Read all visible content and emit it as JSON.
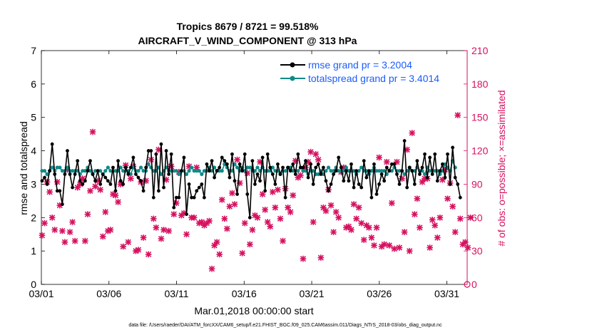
{
  "chart_data": {
    "type": "line",
    "title_line1": "Tropics 8679 / 8721 = 99.518%",
    "title_line2": "AIRCRAFT_V_WIND_COMPONENT @ 313 hPa",
    "xlabel": "Mar.01,2018 00:00:00 start",
    "ylabel_left": "rmse and totalspread",
    "ylabel_right": "# of obs: o=possible; ×=assimilated",
    "footer": "data file: /Users/raeder/DAI/ATM_forcXX/CAM6_setup/f.e21.FHIST_BGC.f09_025.CAM6assim.011/Diags_NTrS_2018-03/obs_diag_output.nc",
    "xlim": [
      0,
      31.5
    ],
    "ylim_left": [
      0,
      7
    ],
    "ylim_right": [
      0,
      210
    ],
    "x_ticks": [
      0,
      5,
      10,
      15,
      20,
      25,
      30
    ],
    "x_tick_labels": [
      "03/01",
      "03/06",
      "03/11",
      "03/16",
      "03/21",
      "03/26",
      "03/31"
    ],
    "y_left_ticks": [
      "0",
      "1",
      "2",
      "3",
      "4",
      "5",
      "6",
      "7"
    ],
    "y_right_ticks": [
      "0",
      "30",
      "60",
      "90",
      "120",
      "150",
      "180",
      "210"
    ],
    "legend": [
      {
        "label": "rmse grand pr = 3.2004",
        "color": "#000000"
      },
      {
        "label": "totalspread grand pr = 3.4014",
        "color": "#0f8a87"
      }
    ],
    "colors": {
      "rmse": "#000000",
      "spread": "#0f8a87",
      "obs": "#d6105f"
    },
    "series": [
      {
        "name": "rmse",
        "values": [
          3.1,
          3.2,
          3.0,
          3.4,
          4.2,
          3.3,
          2.8,
          2.8,
          2.4,
          3.3,
          4.0,
          3.3,
          2.9,
          3.3,
          3.7,
          3.1,
          3.0,
          3.1,
          3.4,
          3.7,
          3.3,
          3.1,
          3.4,
          3.0,
          3.3,
          3.2,
          3.1,
          3.0,
          3.5,
          2.8,
          3.7,
          3.1,
          3.0,
          3.5,
          3.3,
          3.5,
          3.8,
          3.3,
          3.2,
          3.1,
          2.8,
          3.5,
          4.0,
          4.0,
          2.6,
          3.9,
          2.8,
          4.2,
          2.9,
          4.0,
          3.3,
          3.9,
          2.3,
          2.6,
          2.6,
          3.4,
          3.8,
          2.1,
          3.0,
          2.6,
          2.6,
          2.8,
          2.9,
          3.0,
          2.6,
          3.6,
          3.4,
          3.7,
          3.2,
          3.4,
          3.5,
          3.8,
          3.7,
          3.6,
          3.2,
          3.9,
          3.1,
          2.7,
          3.6,
          3.4,
          3.9,
          2.7,
          2.0,
          3.7,
          3.0,
          3.3,
          3.1,
          3.8,
          2.8,
          3.9,
          3.5,
          3.3,
          3.0,
          3.6,
          3.3,
          3.5,
          2.6,
          3.5,
          3.4,
          3.6,
          3.3,
          3.9,
          3.5,
          3.5,
          3.7,
          3.2,
          3.6,
          3.0,
          3.5,
          3.6,
          3.3,
          3.5,
          3.1,
          2.8,
          3.0,
          3.3,
          3.4,
          3.8,
          3.5,
          3.1,
          3.4,
          3.1,
          3.6,
          2.9,
          3.4,
          3.0,
          2.9,
          3.7,
          3.2,
          3.4,
          2.6,
          3.6,
          2.7,
          3.0,
          3.3,
          3.1,
          3.5,
          3.4,
          3.6,
          3.6,
          3.3,
          3.0,
          3.4,
          4.3,
          2.9,
          3.5,
          3.4,
          3.0,
          3.7,
          3.3,
          3.5,
          3.9,
          3.2,
          3.8,
          3.3,
          3.9,
          3.1,
          3.4,
          3.6,
          3.2,
          3.9,
          3.0,
          4.1,
          3.2,
          3.0,
          2.6
        ]
      },
      {
        "name": "totalspread",
        "values": [
          3.4,
          3.4,
          3.3,
          3.4,
          3.5,
          3.4,
          3.5,
          3.5,
          3.4,
          3.4,
          3.5,
          3.4,
          3.4,
          3.4,
          3.4,
          3.3,
          3.4,
          3.4,
          3.5,
          3.4,
          3.3,
          3.4,
          3.4,
          3.4,
          3.3,
          3.4,
          3.5,
          3.4,
          3.4,
          3.4,
          3.4,
          3.5,
          3.4,
          3.4,
          3.4,
          3.3,
          3.5,
          3.4,
          3.4,
          3.5,
          3.4,
          3.4,
          3.6,
          3.5,
          3.4,
          3.4,
          3.5,
          3.3,
          3.4,
          3.5,
          3.4,
          3.4,
          3.4,
          3.4,
          3.3,
          3.4,
          3.4,
          3.3,
          3.4,
          3.5,
          3.4,
          3.4,
          3.4,
          3.3,
          3.4,
          3.4,
          3.5,
          3.4,
          3.5,
          3.4,
          3.4,
          3.4,
          3.6,
          3.5,
          3.4,
          3.4,
          3.6,
          3.5,
          3.4,
          3.5,
          3.4,
          3.5,
          3.5,
          3.4,
          3.4,
          3.5,
          3.4,
          3.5,
          3.4,
          3.4,
          3.4,
          3.5,
          3.4,
          3.4,
          3.3,
          3.4,
          3.4,
          3.5,
          3.5,
          3.4,
          3.4,
          3.4,
          3.5,
          3.4,
          3.4,
          3.3,
          3.4,
          3.4,
          3.3,
          3.3,
          3.4,
          3.3,
          3.4,
          3.5,
          3.4,
          3.4,
          3.5,
          3.4,
          3.4,
          3.4,
          3.5,
          3.4,
          3.4,
          3.4,
          3.3,
          3.4,
          3.5,
          3.4,
          3.4,
          3.3,
          3.4,
          3.5,
          3.4,
          3.4,
          3.4,
          3.4,
          3.3,
          3.4,
          3.4,
          3.5,
          3.4,
          3.4,
          3.4,
          3.3,
          3.4,
          3.5,
          3.4,
          3.4,
          3.5,
          3.4,
          3.4,
          3.3,
          3.5,
          3.4,
          3.4,
          3.4,
          3.4,
          3.3,
          3.4,
          3.6,
          3.5,
          3.4,
          3.7,
          3.5
        ]
      },
      {
        "name": "obs_count",
        "values": [
          44,
          55,
          92,
          83,
          60,
          49,
          92,
          71,
          48,
          38,
          103,
          47,
          56,
          39,
          87,
          90,
          95,
          39,
          63,
          84,
          137,
          88,
          93,
          85,
          43,
          65,
          48,
          49,
          81,
          80,
          74,
          90,
          34,
          107,
          38,
          95,
          106,
          30,
          31,
          92,
          42,
          93,
          27,
          112,
          59,
          51,
          121,
          41,
          49,
          94,
          48,
          106,
          63,
          73,
          101,
          62,
          64,
          45,
          106,
          60,
          60,
          105,
          55,
          56,
          53,
          55,
          57,
          14,
          35,
          38,
          27,
          76,
          59,
          50,
          70,
          82,
          72,
          112,
          91,
          28,
          55,
          100,
          36,
          49,
          62,
          60,
          110,
          81,
          67,
          56,
          52,
          83,
          69,
          85,
          59,
          39,
          86,
          69,
          65,
          80,
          111,
          96,
          98,
          23,
          105,
          110,
          119,
          56,
          117,
          112,
          24,
          69,
          66,
          85,
          71,
          47,
          65,
          60,
          101,
          105,
          51,
          52,
          49,
          72,
          59,
          69,
          55,
          40,
          53,
          51,
          42,
          35,
          51,
          114,
          34,
          36,
          110,
          35,
          73,
          32,
          110,
          33,
          95,
          47,
          121,
          30,
          136,
          63,
          77,
          51,
          92,
          95,
          95,
          33,
          58,
          53,
          42,
          60,
          94,
          103,
          77,
          91,
          70,
          47,
          152,
          59,
          36,
          38,
          33,
          60
        ]
      }
    ]
  }
}
